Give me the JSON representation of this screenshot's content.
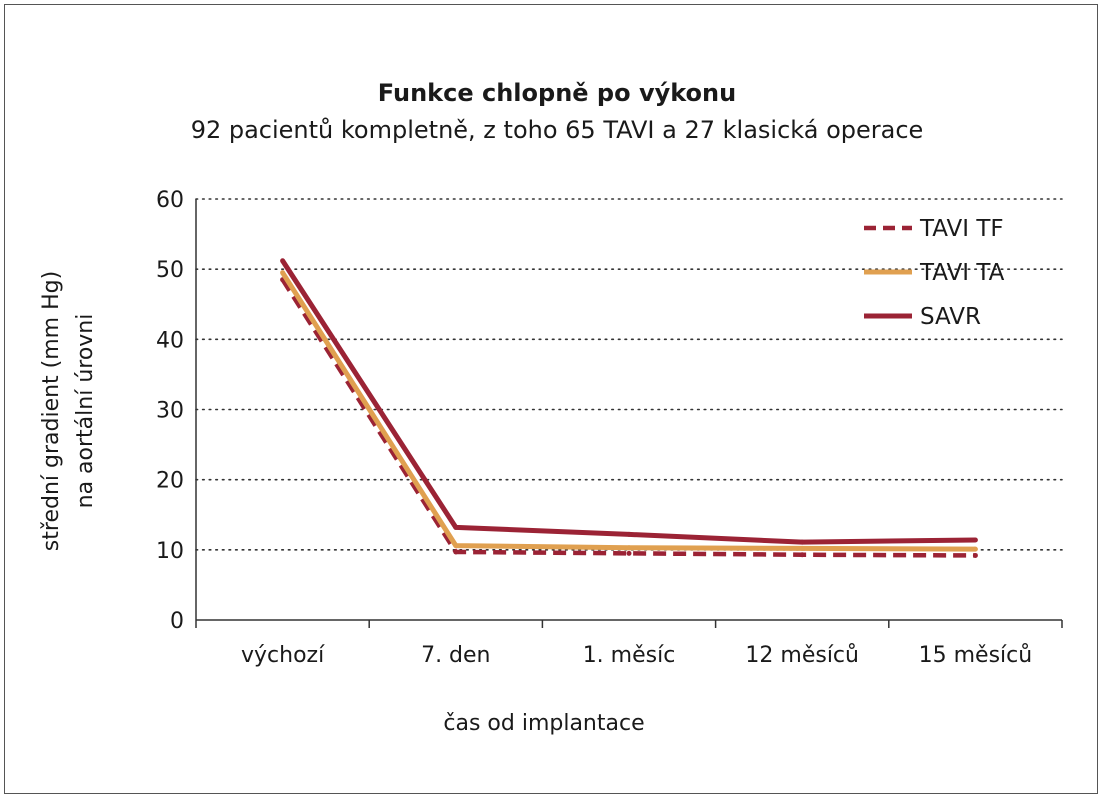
{
  "chart_data": {
    "type": "line",
    "title": "Funkce chlopně po výkonu",
    "subtitle": "92 pacientů kompletně, z toho 65 TAVI a 27 klasická operace",
    "xlabel": "čas od implantace",
    "ylabel_line1": "střední gradient (mm Hg)",
    "ylabel_line2": "na aortální úrovni",
    "categories": [
      "výchozí",
      "7. den",
      "1. měsíc",
      "12 měsíců",
      "15 měsíců"
    ],
    "ylim": [
      0,
      60
    ],
    "yticks": [
      0,
      10,
      20,
      30,
      40,
      50,
      60
    ],
    "grid": "horizontal-dotted",
    "legend_position": "top-right",
    "series": [
      {
        "name": "TAVI TF",
        "style": "dashed",
        "color": "#9b2335",
        "values": [
          48.5,
          9.7,
          9.5,
          9.3,
          9.2
        ]
      },
      {
        "name": "TAVI TA",
        "style": "solid",
        "color": "#e0a050",
        "values": [
          49.5,
          10.6,
          10.3,
          10.2,
          10.1
        ]
      },
      {
        "name": "SAVR",
        "style": "solid",
        "color": "#9b2335",
        "values": [
          51.2,
          13.2,
          12.2,
          11.1,
          11.4
        ]
      }
    ]
  }
}
